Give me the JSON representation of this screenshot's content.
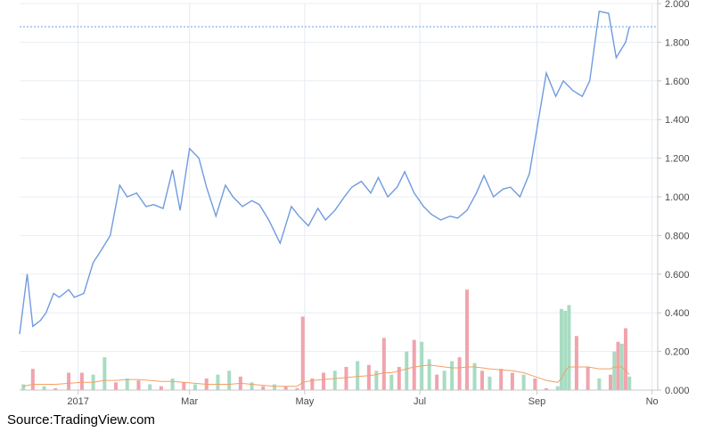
{
  "source": "Source:TradingView.com",
  "chart_data": {
    "type": "line",
    "price": {
      "name": "",
      "color": "#6f9be0",
      "last_value": 1.88,
      "ylim": [
        0,
        2.0
      ],
      "yticks": [
        "2.000",
        "1.800",
        "1.600",
        "1.400",
        "1.200",
        "1.000",
        "0.800",
        "0.600",
        "0.400",
        "0.200",
        "0.000"
      ],
      "x": [
        "2016-12-01",
        "2016-12-05",
        "2016-12-08",
        "2016-12-12",
        "2016-12-15",
        "2016-12-19",
        "2016-12-22",
        "2016-12-27",
        "2016-12-30",
        "2017-01-04",
        "2017-01-09",
        "2017-01-13",
        "2017-01-18",
        "2017-01-23",
        "2017-01-27",
        "2017-02-01",
        "2017-02-06",
        "2017-02-10",
        "2017-02-15",
        "2017-02-20",
        "2017-02-24",
        "2017-03-01",
        "2017-03-06",
        "2017-03-10",
        "2017-03-15",
        "2017-03-20",
        "2017-03-24",
        "2017-03-29",
        "2017-04-03",
        "2017-04-07",
        "2017-04-12",
        "2017-04-18",
        "2017-04-24",
        "2017-04-28",
        "2017-05-03",
        "2017-05-08",
        "2017-05-12",
        "2017-05-17",
        "2017-05-22",
        "2017-05-26",
        "2017-05-31",
        "2017-06-05",
        "2017-06-09",
        "2017-06-14",
        "2017-06-19",
        "2017-06-23",
        "2017-06-28",
        "2017-07-03",
        "2017-07-07",
        "2017-07-12",
        "2017-07-17",
        "2017-07-21",
        "2017-07-26",
        "2017-07-31",
        "2017-08-04",
        "2017-08-09",
        "2017-08-14",
        "2017-08-18",
        "2017-08-23",
        "2017-08-28",
        "2017-09-01",
        "2017-09-06",
        "2017-09-11",
        "2017-09-15",
        "2017-09-20",
        "2017-09-25",
        "2017-09-29",
        "2017-10-04",
        "2017-10-09",
        "2017-10-13",
        "2017-10-18",
        "2017-10-20"
      ],
      "values": [
        0.29,
        0.6,
        0.33,
        0.36,
        0.4,
        0.5,
        0.48,
        0.52,
        0.48,
        0.5,
        0.66,
        0.72,
        0.8,
        1.06,
        1.0,
        1.02,
        0.95,
        0.96,
        0.94,
        1.14,
        0.93,
        1.25,
        1.2,
        1.05,
        0.9,
        1.06,
        1.0,
        0.95,
        0.98,
        0.96,
        0.88,
        0.76,
        0.95,
        0.9,
        0.85,
        0.94,
        0.88,
        0.93,
        1.0,
        1.05,
        1.08,
        1.02,
        1.1,
        1.0,
        1.05,
        1.13,
        1.02,
        0.95,
        0.91,
        0.88,
        0.9,
        0.89,
        0.93,
        1.02,
        1.11,
        1.0,
        1.04,
        1.05,
        1.0,
        1.12,
        1.35,
        1.64,
        1.52,
        1.6,
        1.55,
        1.52,
        1.6,
        1.96,
        1.95,
        1.72,
        1.8,
        1.88
      ]
    },
    "volume": {
      "up_color": "#a8dcc2",
      "down_color": "#f0a4ad",
      "ma_color": "#f2a066",
      "x": [
        "2016-12-03",
        "2016-12-08",
        "2016-12-14",
        "2016-12-20",
        "2016-12-27",
        "2017-01-03",
        "2017-01-09",
        "2017-01-15",
        "2017-01-21",
        "2017-01-27",
        "2017-02-02",
        "2017-02-08",
        "2017-02-14",
        "2017-02-20",
        "2017-02-26",
        "2017-03-04",
        "2017-03-10",
        "2017-03-16",
        "2017-03-22",
        "2017-03-28",
        "2017-04-03",
        "2017-04-09",
        "2017-04-15",
        "2017-04-21",
        "2017-04-27",
        "2017-04-30",
        "2017-05-05",
        "2017-05-11",
        "2017-05-17",
        "2017-05-23",
        "2017-05-29",
        "2017-06-04",
        "2017-06-08",
        "2017-06-12",
        "2017-06-16",
        "2017-06-20",
        "2017-06-24",
        "2017-06-28",
        "2017-07-02",
        "2017-07-06",
        "2017-07-10",
        "2017-07-14",
        "2017-07-18",
        "2017-07-22",
        "2017-07-26",
        "2017-07-30",
        "2017-08-03",
        "2017-08-07",
        "2017-08-13",
        "2017-08-19",
        "2017-08-25",
        "2017-08-31",
        "2017-09-06",
        "2017-09-12",
        "2017-09-14",
        "2017-09-16",
        "2017-09-18",
        "2017-09-22",
        "2017-09-28",
        "2017-10-04",
        "2017-10-10",
        "2017-10-12",
        "2017-10-14",
        "2017-10-16",
        "2017-10-18",
        "2017-10-20"
      ],
      "values": [
        0.03,
        0.11,
        0.02,
        0.01,
        0.09,
        0.09,
        0.08,
        0.17,
        0.04,
        0.06,
        0.05,
        0.03,
        0.02,
        0.06,
        0.04,
        0.03,
        0.06,
        0.08,
        0.1,
        0.07,
        0.04,
        0.02,
        0.03,
        0.02,
        0.01,
        0.38,
        0.06,
        0.09,
        0.1,
        0.12,
        0.15,
        0.13,
        0.1,
        0.27,
        0.08,
        0.12,
        0.2,
        0.26,
        0.25,
        0.16,
        0.08,
        0.1,
        0.15,
        0.17,
        0.52,
        0.14,
        0.1,
        0.07,
        0.11,
        0.09,
        0.08,
        0.06,
        0.01,
        0.02,
        0.42,
        0.41,
        0.44,
        0.28,
        0.12,
        0.06,
        0.08,
        0.2,
        0.25,
        0.24,
        0.32,
        0.07
      ],
      "up": [
        true,
        false,
        true,
        false,
        false,
        false,
        true,
        true,
        false,
        true,
        false,
        true,
        false,
        true,
        false,
        true,
        false,
        true,
        true,
        false,
        true,
        false,
        true,
        false,
        false,
        false,
        false,
        false,
        true,
        false,
        true,
        false,
        true,
        false,
        true,
        false,
        true,
        false,
        true,
        true,
        false,
        true,
        true,
        false,
        false,
        true,
        false,
        true,
        false,
        false,
        true,
        false,
        false,
        true,
        true,
        true,
        true,
        false,
        false,
        true,
        false,
        true,
        false,
        true,
        false,
        true
      ],
      "ma": [
        0.02,
        0.03,
        0.03,
        0.03,
        0.035,
        0.04,
        0.04,
        0.05,
        0.05,
        0.055,
        0.055,
        0.05,
        0.045,
        0.045,
        0.04,
        0.035,
        0.03,
        0.03,
        0.03,
        0.035,
        0.03,
        0.025,
        0.02,
        0.02,
        0.02,
        0.04,
        0.05,
        0.055,
        0.06,
        0.065,
        0.07,
        0.075,
        0.08,
        0.09,
        0.09,
        0.1,
        0.11,
        0.12,
        0.125,
        0.13,
        0.125,
        0.12,
        0.115,
        0.115,
        0.12,
        0.12,
        0.115,
        0.11,
        0.105,
        0.1,
        0.09,
        0.07,
        0.05,
        0.04,
        0.06,
        0.1,
        0.12,
        0.12,
        0.12,
        0.11,
        0.11,
        0.12,
        0.12,
        0.12,
        0.1,
        0.08
      ]
    },
    "x_ticks": [
      {
        "date": "2017-01-01",
        "label": "2017"
      },
      {
        "date": "2017-03-01",
        "label": "Mar"
      },
      {
        "date": "2017-05-01",
        "label": "May"
      },
      {
        "date": "2017-07-01",
        "label": "Jul"
      },
      {
        "date": "2017-09-01",
        "label": "Sep"
      },
      {
        "date": "2017-11-01",
        "label": "No"
      }
    ],
    "grid": true
  }
}
